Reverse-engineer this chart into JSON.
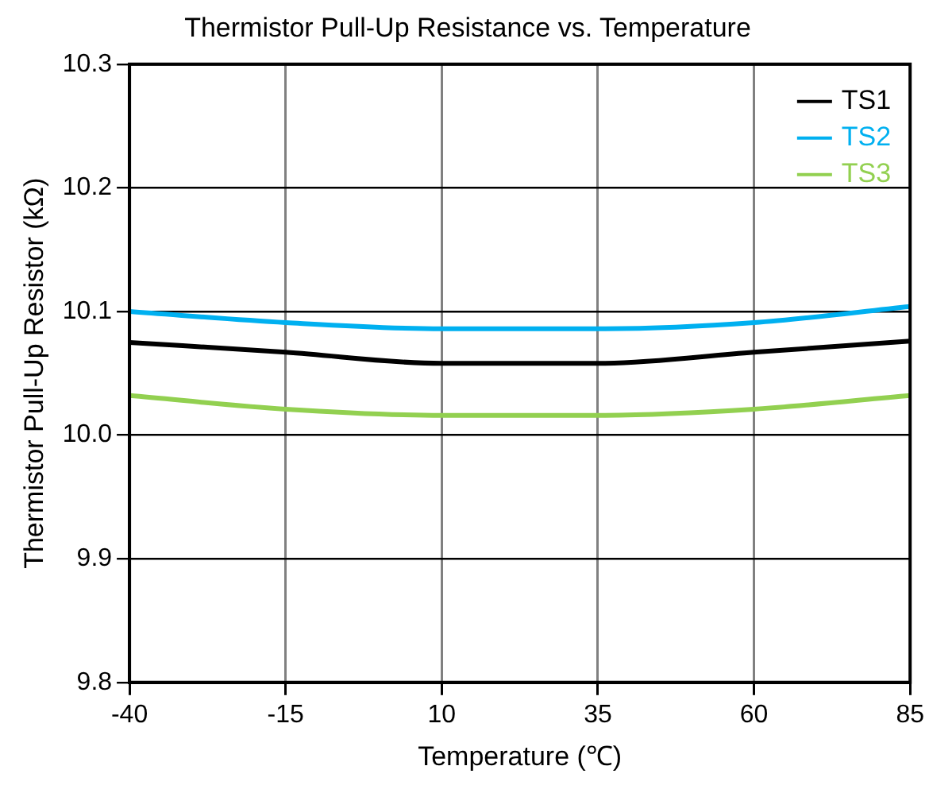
{
  "chart_data": {
    "type": "line",
    "title": "Thermistor Pull-Up Resistance vs. Temperature",
    "xlabel": "Temperature (℃)",
    "ylabel": "Thermistor Pull-Up Resistor (kΩ)",
    "x": [
      -40,
      -15,
      10,
      35,
      60,
      85
    ],
    "series": [
      {
        "name": "TS1",
        "color": "#000000",
        "values": [
          10.075,
          10.067,
          10.058,
          10.058,
          10.067,
          10.076
        ]
      },
      {
        "name": "TS2",
        "color": "#00b0f0",
        "values": [
          10.1,
          10.091,
          10.086,
          10.086,
          10.091,
          10.104
        ]
      },
      {
        "name": "TS3",
        "color": "#92d050",
        "values": [
          10.032,
          10.021,
          10.016,
          10.016,
          10.021,
          10.032
        ]
      }
    ],
    "xlim": [
      -40,
      85
    ],
    "xticks": [
      -40,
      -15,
      10,
      35,
      60,
      85
    ],
    "ylim": [
      9.8,
      10.3
    ],
    "yticks": [
      {
        "value": 9.8,
        "label": "9.8"
      },
      {
        "value": 9.9,
        "label": "9.9"
      },
      {
        "value": 10,
        "label": "10.0"
      },
      {
        "value": 10.1,
        "label": "10.1"
      },
      {
        "value": 10.2,
        "label": "10.2"
      },
      {
        "value": 10.3,
        "label": "10.3"
      }
    ],
    "grid": true,
    "legend": "top right",
    "marker": "none",
    "line_style": "solid"
  }
}
